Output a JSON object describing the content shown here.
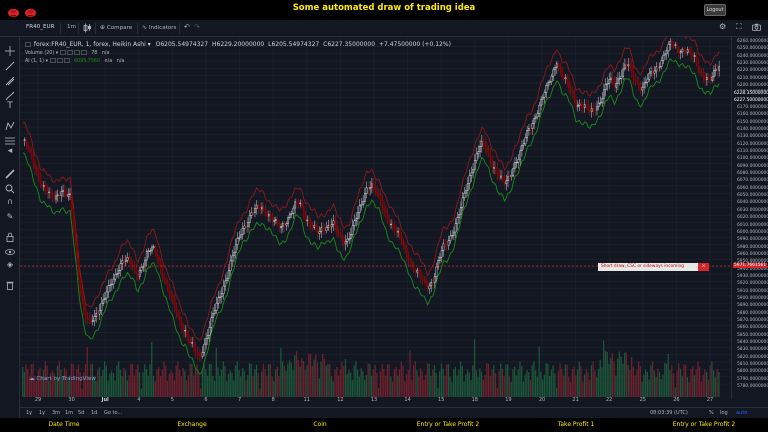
{
  "page": {
    "title": "Some automated draw of trading idea",
    "logout_label": "Logout"
  },
  "toolbar": {
    "symbol": "FR40_EUR",
    "interval": "1m",
    "compare_label": "Compare",
    "indicators_label": "Indicators"
  },
  "legend": {
    "main": "forex:FR40_EUR, 1, forex, Heikin Ashi",
    "open": "O6205.54974327",
    "high": "H6229.20000000",
    "low": "L6205.54974327",
    "close": "C6227.35000000",
    "change": "+7.47500000 (+0.12%)",
    "volume_label": "Volume (20)",
    "volume_value": "78",
    "volume_na": "n/a",
    "al_label": "Al (1, 1)",
    "al_value": "6095.7560",
    "al_na1": "n/a",
    "al_na2": "n/a"
  },
  "price_axis": {
    "ticks": [
      "6260.00000000",
      "6250.00000000",
      "6240.00000000",
      "6230.00000000",
      "6220.00000000",
      "6210.00000000",
      "6200.00000000",
      "6190.00000000",
      "6180.00000000",
      "6170.00000000",
      "6160.00000000",
      "6150.00000000",
      "6140.00000000",
      "6130.00000000",
      "6120.00000000",
      "6110.00000000",
      "6100.00000000",
      "6090.00000000",
      "6080.00000000",
      "6070.00000000",
      "6060.00000000",
      "6050.00000000",
      "6040.00000000",
      "6030.00000000",
      "6020.00000000",
      "6010.00000000",
      "6000.00000000",
      "5990.00000000",
      "5980.00000000",
      "5960.00000000",
      "5950.00000000",
      "5940.00000000",
      "5930.00000000",
      "5920.00000000",
      "5910.00000000",
      "5900.00000000",
      "5890.00000000",
      "5880.00000000",
      "5870.00000000",
      "5860.00000000",
      "5850.00000000",
      "5840.00000000",
      "5830.00000000",
      "5820.00000000",
      "5810.00000000",
      "5800.00000000",
      "5790.00000000",
      "5780.00000000"
    ],
    "last_price": "6228.35000000",
    "last_price2": "6227.50000000",
    "alert_price": "5971.7661561"
  },
  "time_axis": {
    "ticks": [
      "29",
      "30",
      "Jul",
      "4",
      "5",
      "6",
      "7",
      "8",
      "11",
      "12",
      "13",
      "14",
      "15",
      "18",
      "19",
      "20",
      "21",
      "22",
      "25",
      "26",
      "27"
    ],
    "strong": "Jul"
  },
  "bottom": {
    "ranges": [
      "1y",
      "1y",
      "3m",
      "1m",
      "5d",
      "1d"
    ],
    "goto": "Go to...",
    "clock": "08:03:39 (UTC)",
    "percent": "%",
    "log": "log",
    "auto": "auto"
  },
  "attribution": "Chart by TradingView",
  "banner": {
    "text": "Short draw, CSC or sideways incoming",
    "close": "×"
  },
  "footer": {
    "items": [
      "Date Time",
      "Exchange",
      "Coin",
      "Entry or Take Profit 2",
      "Take Profit 1",
      "Entry or Take Profit 2"
    ]
  },
  "colors": {
    "background": "#131722",
    "title": "#ffeb00",
    "bull_candle": "#ffffff",
    "bear_candle": "#8b0000",
    "line_green": "#1a8a1a",
    "line_red": "#8b1a1a",
    "volume_up": "#1f5f3e",
    "volume_down": "#7a2430",
    "alert_line": "#d6262b"
  },
  "chart_data": {
    "type": "candlestick",
    "price_range": [
      5780,
      6262
    ],
    "closes": [
      6122,
      6110,
      6095,
      6080,
      6060,
      6050,
      6040,
      6045,
      6055,
      6045,
      6040,
      5980,
      5920,
      5880,
      5865,
      5875,
      5890,
      5905,
      5915,
      5925,
      5945,
      5960,
      5955,
      5945,
      5935,
      5950,
      5965,
      5970,
      5965,
      5945,
      5925,
      5905,
      5885,
      5870,
      5860,
      5840,
      5830,
      5820,
      5840,
      5860,
      5880,
      5900,
      5920,
      5940,
      5960,
      5980,
      6000,
      6010,
      6020,
      6025,
      6030,
      6025,
      6015,
      6005,
      6000,
      6010,
      6020,
      6030,
      6035,
      6020,
      6010,
      6000,
      5990,
      6000,
      6005,
      6010,
      5990,
      5980,
      5985,
      6000,
      6015,
      6030,
      6055,
      6065,
      6050,
      6035,
      6020,
      6010,
      6000,
      5985,
      5970,
      5960,
      5945,
      5935,
      5925,
      5920,
      5930,
      5950,
      5970,
      5980,
      5995,
      6010,
      6030,
      6055,
      6080,
      6100,
      6115,
      6110,
      6095,
      6085,
      6070,
      6060,
      6070,
      6090,
      6100,
      6115,
      6135,
      6150,
      6165,
      6180,
      6195,
      6215,
      6235,
      6210,
      6200,
      6190,
      6175,
      6170,
      6165,
      6160,
      6170,
      6175,
      6190,
      6205,
      6200,
      6210,
      6220,
      6225,
      6210,
      6200,
      6195,
      6205,
      6215,
      6225,
      6235,
      6245,
      6255,
      6252,
      6248,
      6245,
      6240,
      6235,
      6220,
      6210,
      6200,
      6215,
      6228
    ]
  }
}
